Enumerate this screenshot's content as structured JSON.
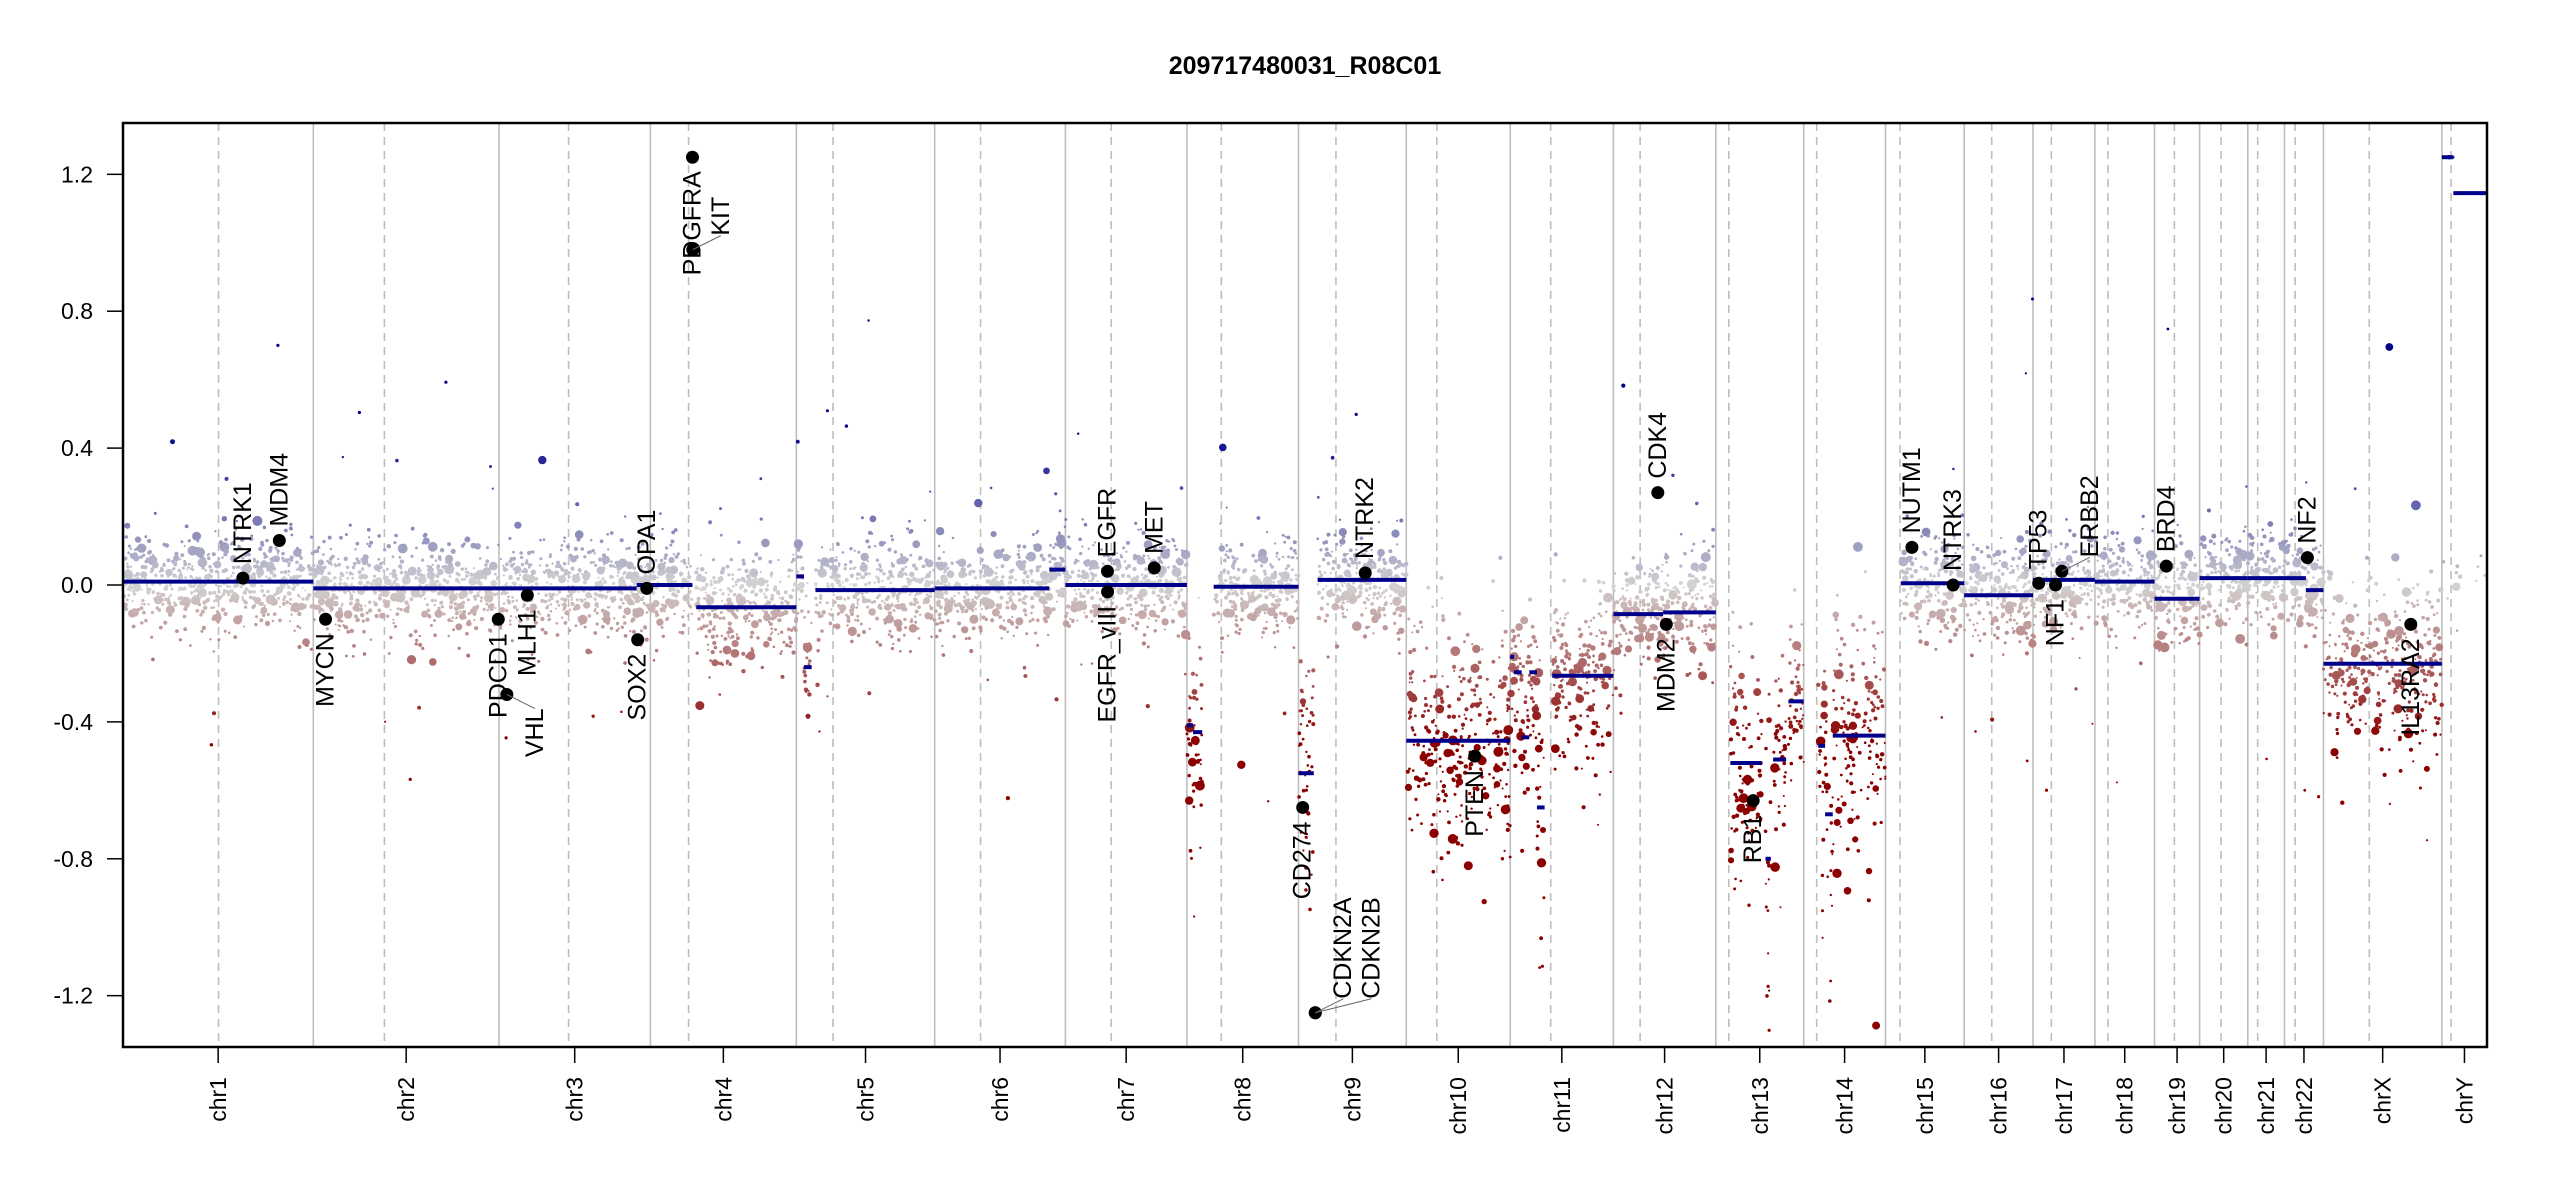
{
  "chart_data": {
    "type": "scatter",
    "title": "209717480031_R08C01",
    "xlabel": "",
    "ylabel": "",
    "ylim": [
      -1.35,
      1.35
    ],
    "yticks": [
      -1.2,
      -0.8,
      -0.4,
      0.0,
      0.4,
      0.8,
      1.2
    ],
    "ytick_labels": [
      "-1.2",
      "-0.8",
      "-0.4",
      "0.0",
      "0.4",
      "0.8",
      "1.2"
    ],
    "grid": false,
    "colors": {
      "gain": "#00008b",
      "neutral": "#d3d3d3",
      "loss": "#8b0000",
      "segment": "#00008b",
      "gene": "#000000",
      "boundary": "#bebebe"
    },
    "chromosomes": [
      {
        "name": "chr1",
        "length_mb": 249,
        "centromere_mb": 125
      },
      {
        "name": "chr2",
        "length_mb": 243,
        "centromere_mb": 93
      },
      {
        "name": "chr3",
        "length_mb": 198,
        "centromere_mb": 91
      },
      {
        "name": "chr4",
        "length_mb": 191,
        "centromere_mb": 50
      },
      {
        "name": "chr5",
        "length_mb": 181,
        "centromere_mb": 48
      },
      {
        "name": "chr6",
        "length_mb": 171,
        "centromere_mb": 60
      },
      {
        "name": "chr7",
        "length_mb": 159,
        "centromere_mb": 60
      },
      {
        "name": "chr8",
        "length_mb": 146,
        "centromere_mb": 45
      },
      {
        "name": "chr9",
        "length_mb": 141,
        "centromere_mb": 49
      },
      {
        "name": "chr10",
        "length_mb": 136,
        "centromere_mb": 40
      },
      {
        "name": "chr11",
        "length_mb": 135,
        "centromere_mb": 53
      },
      {
        "name": "chr12",
        "length_mb": 134,
        "centromere_mb": 35
      },
      {
        "name": "chr13",
        "length_mb": 115,
        "centromere_mb": 17
      },
      {
        "name": "chr14",
        "length_mb": 107,
        "centromere_mb": 17
      },
      {
        "name": "chr15",
        "length_mb": 103,
        "centromere_mb": 19
      },
      {
        "name": "chr16",
        "length_mb": 90,
        "centromere_mb": 36
      },
      {
        "name": "chr17",
        "length_mb": 81,
        "centromere_mb": 24
      },
      {
        "name": "chr18",
        "length_mb": 78,
        "centromere_mb": 17
      },
      {
        "name": "chr19",
        "length_mb": 59,
        "centromere_mb": 26
      },
      {
        "name": "chr20",
        "length_mb": 63,
        "centromere_mb": 28
      },
      {
        "name": "chr21",
        "length_mb": 48,
        "centromere_mb": 13
      },
      {
        "name": "chr22",
        "length_mb": 51,
        "centromere_mb": 14
      },
      {
        "name": "chrX",
        "length_mb": 155,
        "centromere_mb": 60
      },
      {
        "name": "chrY",
        "length_mb": 59,
        "centromere_mb": 12
      }
    ],
    "segments": [
      {
        "chr": "chr1",
        "start": 0,
        "end": 249,
        "value": 0.01
      },
      {
        "chr": "chr2",
        "start": 0,
        "end": 243,
        "value": -0.01
      },
      {
        "chr": "chr3",
        "start": 0,
        "end": 180,
        "value": -0.01
      },
      {
        "chr": "chr3",
        "start": 180,
        "end": 198,
        "value": 0.0
      },
      {
        "chr": "chr4",
        "start": 0,
        "end": 55,
        "value": 0.0
      },
      {
        "chr": "chr4",
        "start": 60,
        "end": 191,
        "value": -0.065
      },
      {
        "chr": "chr5",
        "start": 0,
        "end": 10,
        "value": 0.025
      },
      {
        "chr": "chr5",
        "start": 10,
        "end": 20,
        "value": -0.24
      },
      {
        "chr": "chr5",
        "start": 25,
        "end": 181,
        "value": -0.015
      },
      {
        "chr": "chr6",
        "start": 0,
        "end": 150,
        "value": -0.01
      },
      {
        "chr": "chr6",
        "start": 150,
        "end": 171,
        "value": 0.045
      },
      {
        "chr": "chr7",
        "start": 0,
        "end": 159,
        "value": 0.0
      },
      {
        "chr": "chr8",
        "start": 0,
        "end": 8,
        "value": -0.41
      },
      {
        "chr": "chr8",
        "start": 8,
        "end": 20,
        "value": -0.43
      },
      {
        "chr": "chr8",
        "start": 35,
        "end": 146,
        "value": -0.005
      },
      {
        "chr": "chr9",
        "start": 0,
        "end": 20,
        "value": -0.55
      },
      {
        "chr": "chr9",
        "start": 25,
        "end": 141,
        "value": 0.015
      },
      {
        "chr": "chr10",
        "start": 0,
        "end": 136,
        "value": -0.455
      },
      {
        "chr": "chr11",
        "start": 0,
        "end": 5,
        "value": -0.21
      },
      {
        "chr": "chr11",
        "start": 5,
        "end": 15,
        "value": -0.255
      },
      {
        "chr": "chr11",
        "start": 15,
        "end": 25,
        "value": -0.445
      },
      {
        "chr": "chr11",
        "start": 25,
        "end": 35,
        "value": -0.255
      },
      {
        "chr": "chr11",
        "start": 35,
        "end": 45,
        "value": -0.65
      },
      {
        "chr": "chr11",
        "start": 55,
        "end": 135,
        "value": -0.265
      },
      {
        "chr": "chr12",
        "start": 0,
        "end": 65,
        "value": -0.085
      },
      {
        "chr": "chr12",
        "start": 65,
        "end": 134,
        "value": -0.08
      },
      {
        "chr": "chr13",
        "start": 19,
        "end": 60,
        "value": -0.52
      },
      {
        "chr": "chr13",
        "start": 65,
        "end": 72,
        "value": -0.8
      },
      {
        "chr": "chr13",
        "start": 75,
        "end": 92,
        "value": -0.51
      },
      {
        "chr": "chr13",
        "start": 95,
        "end": 115,
        "value": -0.34
      },
      {
        "chr": "chr14",
        "start": 19,
        "end": 28,
        "value": -0.47
      },
      {
        "chr": "chr14",
        "start": 28,
        "end": 38,
        "value": -0.67
      },
      {
        "chr": "chr14",
        "start": 38,
        "end": 107,
        "value": -0.44
      },
      {
        "chr": "chr15",
        "start": 20,
        "end": 103,
        "value": 0.005
      },
      {
        "chr": "chr16",
        "start": 0,
        "end": 90,
        "value": -0.03
      },
      {
        "chr": "chr17",
        "start": 0,
        "end": 81,
        "value": 0.015
      },
      {
        "chr": "chr18",
        "start": 0,
        "end": 78,
        "value": 0.01
      },
      {
        "chr": "chr19",
        "start": 0,
        "end": 59,
        "value": -0.04
      },
      {
        "chr": "chr20",
        "start": 0,
        "end": 63,
        "value": 0.02
      },
      {
        "chr": "chr21",
        "start": 0,
        "end": 48,
        "value": 0.02
      },
      {
        "chr": "chr22",
        "start": 0,
        "end": 28,
        "value": 0.02
      },
      {
        "chr": "chr22",
        "start": 28,
        "end": 51,
        "value": -0.015
      },
      {
        "chr": "chrX",
        "start": 0,
        "end": 155,
        "value": -0.23
      },
      {
        "chr": "chrY",
        "start": 0,
        "end": 15,
        "value": 1.25
      },
      {
        "chr": "chrY",
        "start": 15,
        "end": 59,
        "value": 1.145
      }
    ],
    "genes": [
      {
        "name": "NTRK1",
        "chr": "chr1",
        "pos_mb": 156.8,
        "value": 0.02
      },
      {
        "name": "MDM4",
        "chr": "chr1",
        "pos_mb": 204.5,
        "value": 0.13
      },
      {
        "name": "MYCN",
        "chr": "chr2",
        "pos_mb": 16.0,
        "value": -0.1
      },
      {
        "name": "PDCD1",
        "chr": "chr2",
        "pos_mb": 242.0,
        "value": -0.1
      },
      {
        "name": "VHL",
        "chr": "chr3",
        "pos_mb": 10.2,
        "value": -0.32
      },
      {
        "name": "MLH1",
        "chr": "chr3",
        "pos_mb": 37.0,
        "value": -0.03
      },
      {
        "name": "SOX2",
        "chr": "chr3",
        "pos_mb": 181.4,
        "value": -0.16
      },
      {
        "name": "OPA1",
        "chr": "chr3",
        "pos_mb": 193.3,
        "value": -0.01
      },
      {
        "name": "KIT",
        "chr": "chr4",
        "pos_mb": 55.5,
        "value": 0.98
      },
      {
        "name": "PDGFRA",
        "chr": "chr4",
        "pos_mb": 55.1,
        "value": 1.25
      },
      {
        "name": "EGFR",
        "chr": "chr7",
        "pos_mb": 55.1,
        "value": 0.04
      },
      {
        "name": "EGFR_vIII",
        "chr": "chr7",
        "pos_mb": 55.2,
        "value": -0.02
      },
      {
        "name": "MET",
        "chr": "chr7",
        "pos_mb": 116.3,
        "value": 0.05
      },
      {
        "name": "CD274",
        "chr": "chr9",
        "pos_mb": 5.5,
        "value": -0.65
      },
      {
        "name": "CDKN2A",
        "chr": "chr9",
        "pos_mb": 21.9,
        "value": -1.25
      },
      {
        "name": "CDKN2B",
        "chr": "chr9",
        "pos_mb": 22.0,
        "value": -1.25
      },
      {
        "name": "NTRK2",
        "chr": "chr9",
        "pos_mb": 87.3,
        "value": 0.035
      },
      {
        "name": "PTEN",
        "chr": "chr10",
        "pos_mb": 89.6,
        "value": -0.5
      },
      {
        "name": "CDK4",
        "chr": "chr12",
        "pos_mb": 58.1,
        "value": 0.27
      },
      {
        "name": "MDM2",
        "chr": "chr12",
        "pos_mb": 69.2,
        "value": -0.115
      },
      {
        "name": "RB1",
        "chr": "chr13",
        "pos_mb": 48.9,
        "value": -0.63
      },
      {
        "name": "NUTM1",
        "chr": "chr15",
        "pos_mb": 34.6,
        "value": 0.11
      },
      {
        "name": "NTRK3",
        "chr": "chr15",
        "pos_mb": 88.5,
        "value": 0.0
      },
      {
        "name": "TP53",
        "chr": "chr17",
        "pos_mb": 7.5,
        "value": 0.005
      },
      {
        "name": "NF1",
        "chr": "chr17",
        "pos_mb": 29.5,
        "value": 0.0
      },
      {
        "name": "ERBB2",
        "chr": "chr17",
        "pos_mb": 37.8,
        "value": 0.04
      },
      {
        "name": "BRD4",
        "chr": "chr19",
        "pos_mb": 15.4,
        "value": 0.055
      },
      {
        "name": "NF2",
        "chr": "chr22",
        "pos_mb": 30.0,
        "value": 0.08
      },
      {
        "name": "IL13RA2",
        "chr": "chrX",
        "pos_mb": 114.3,
        "value": -0.115
      }
    ]
  }
}
